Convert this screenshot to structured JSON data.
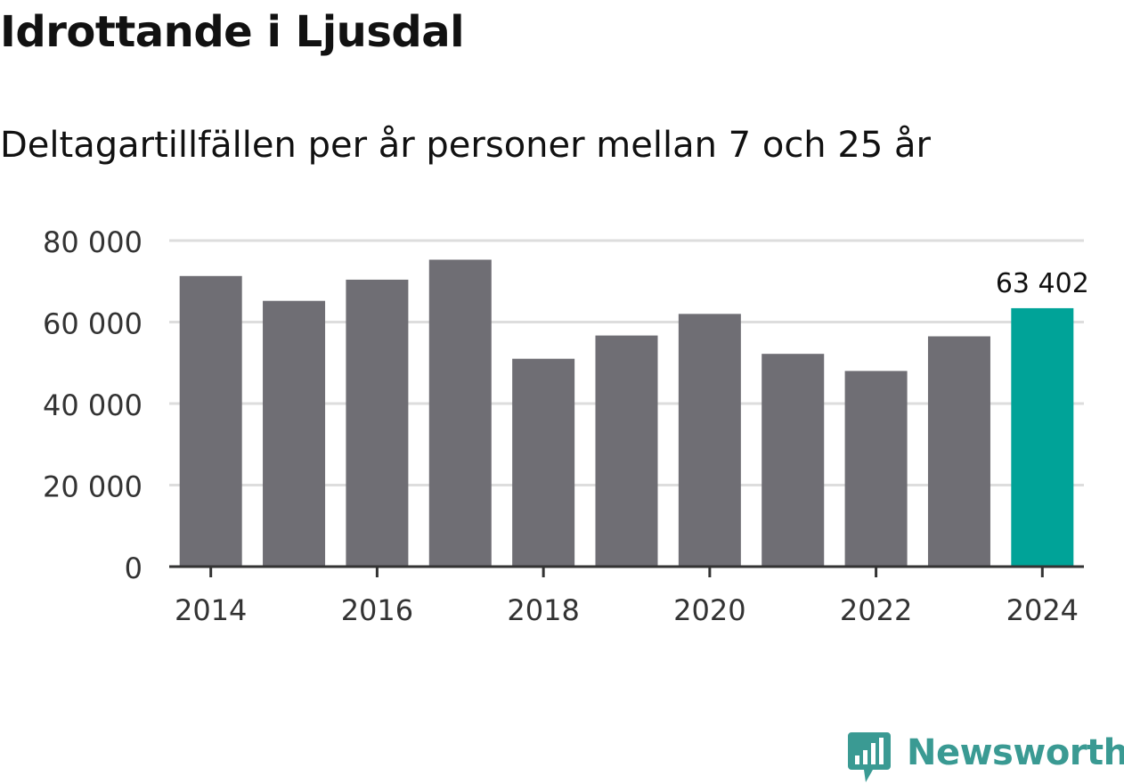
{
  "chart_data": {
    "type": "bar",
    "title": "Idrottande i Ljusdal",
    "subtitle": "Deltagartillfällen per år personer mellan 7 och 25 år",
    "categories": [
      "2014",
      "2015",
      "2016",
      "2017",
      "2018",
      "2019",
      "2020",
      "2021",
      "2022",
      "2023",
      "2024"
    ],
    "values": [
      71300,
      65200,
      70400,
      75300,
      51000,
      56700,
      62000,
      52200,
      48000,
      56500,
      63402
    ],
    "x_tick_labels": [
      "2014",
      "2016",
      "2018",
      "2020",
      "2022",
      "2024"
    ],
    "y_ticks": [
      0,
      20000,
      40000,
      60000,
      80000
    ],
    "y_tick_labels": [
      "0",
      "20 000",
      "40 000",
      "60 000",
      "80 000"
    ],
    "ylim": [
      0,
      80000
    ],
    "xlabel": "",
    "ylabel": "",
    "grid": true,
    "highlight_index": 10,
    "data_label": {
      "index": 10,
      "text": "63 402"
    },
    "colors": {
      "bar": "#6f6e74",
      "highlight": "#00a398",
      "grid": "#dddddd",
      "axis": "#333333",
      "tick_text": "#333333",
      "label_text": "#111111"
    }
  },
  "brand": {
    "name": "Newsworthy",
    "color": "#3a9a93"
  }
}
